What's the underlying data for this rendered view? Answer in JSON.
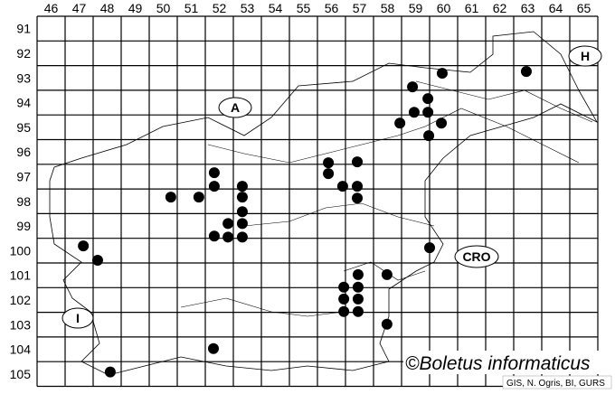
{
  "map": {
    "column_labels": [
      "46",
      "47",
      "48",
      "49",
      "50",
      "51",
      "52",
      "53",
      "54",
      "55",
      "56",
      "57",
      "58",
      "59",
      "60",
      "61",
      "62",
      "63",
      "64",
      "65"
    ],
    "row_labels": [
      "91",
      "92",
      "93",
      "94",
      "95",
      "96",
      "97",
      "98",
      "99",
      "100",
      "101",
      "102",
      "103",
      "104",
      "105"
    ],
    "country_labels": [
      "A",
      "H",
      "CRO",
      "I"
    ],
    "copyright": "©Boletus informaticus",
    "credit": "GIS, N. Ogris, BI, GURS",
    "dot_color": "#000000",
    "records": [
      [
        59.95,
        92.81
      ],
      [
        62.95,
        92.74
      ],
      [
        58.89,
        93.36
      ],
      [
        59.44,
        93.84
      ],
      [
        58.95,
        94.39
      ],
      [
        59.44,
        94.39
      ],
      [
        58.44,
        94.83
      ],
      [
        59.92,
        94.83
      ],
      [
        59.47,
        95.34
      ],
      [
        55.89,
        96.44
      ],
      [
        56.92,
        96.4
      ],
      [
        51.82,
        96.84
      ],
      [
        55.89,
        96.88
      ],
      [
        51.82,
        97.39
      ],
      [
        52.82,
        97.39
      ],
      [
        56.4,
        97.39
      ],
      [
        56.92,
        97.39
      ],
      [
        50.27,
        97.83
      ],
      [
        51.27,
        97.83
      ],
      [
        52.82,
        97.83
      ],
      [
        56.92,
        97.87
      ],
      [
        52.82,
        98.42
      ],
      [
        52.31,
        98.9
      ],
      [
        52.82,
        98.9
      ],
      [
        51.82,
        99.41
      ],
      [
        52.31,
        99.45
      ],
      [
        52.82,
        99.45
      ],
      [
        47.15,
        99.81
      ],
      [
        59.5,
        99.88
      ],
      [
        47.66,
        100.39
      ],
      [
        56.95,
        100.97
      ],
      [
        57.98,
        100.97
      ],
      [
        56.44,
        101.48
      ],
      [
        56.95,
        101.48
      ],
      [
        56.44,
        101.96
      ],
      [
        56.95,
        101.96
      ],
      [
        56.44,
        102.47
      ],
      [
        56.95,
        102.47
      ],
      [
        57.98,
        102.98
      ],
      [
        51.79,
        103.97
      ],
      [
        48.11,
        104.92
      ]
    ]
  }
}
